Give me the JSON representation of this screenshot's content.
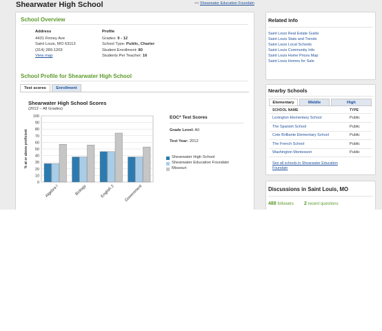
{
  "header": {
    "title": "Shearwater High School",
    "back_link_prefix": "<<",
    "back_link_label": "Shearwater Education Foundatn"
  },
  "overview": {
    "section_title": "School Overview",
    "address_label": "Address",
    "address_line1": "4431 Finney Ave",
    "address_line2": "Saint Louis, MO 63113",
    "phone": "(314) 289-1203",
    "map_link": "View map",
    "profile_label": "Profile",
    "grades_label": "Grades:",
    "grades_value": "9 - 12",
    "type_label": "School Type:",
    "type_value": "Public, Charter",
    "enrollment_label": "Student Enrollment:",
    "enrollment_value": "80",
    "ratio_label": "Students Per Teacher:",
    "ratio_value": "16"
  },
  "profile": {
    "section_title": "School Profile for Shearwater High School",
    "tabs": [
      {
        "label": "Test scores",
        "active": true
      },
      {
        "label": "Enrollment",
        "active": false
      }
    ]
  },
  "chart_data": {
    "type": "bar",
    "title": "Shearwater High School Scores",
    "subtitle": "(2012 –  All Grades)",
    "ylabel": "% at or above proficient",
    "xlabel": "",
    "ylim": [
      0,
      100
    ],
    "yticks": [
      0,
      10,
      20,
      30,
      40,
      50,
      60,
      70,
      80,
      90,
      100
    ],
    "categories": [
      "Algebra I",
      "Biology",
      "English 2",
      "Government"
    ],
    "series": [
      {
        "name": "Shearwater High School",
        "color": "#2b7bb0",
        "values": [
          28,
          38,
          46,
          38
        ]
      },
      {
        "name": "Shearwater Education Foundatn",
        "color": "#a9cde9",
        "values": [
          28,
          38,
          46,
          38
        ]
      },
      {
        "name": "Missouri",
        "color": "#c6c6c6",
        "values": [
          57,
          56,
          74,
          53
        ]
      }
    ],
    "grid": true
  },
  "eoc": {
    "title": "EOC* Test Scores",
    "grade_label": "Grade Level:",
    "grade_value": "All",
    "year_label": "Test Year:",
    "year_value": "2012"
  },
  "related": {
    "title": "Related Info",
    "links": [
      "Saint Louis Real Estate Guide",
      "Saint Louis Stats and Trends",
      "Saint Louis Local Schools",
      "Saint Louis Community Info",
      "Saint Louis Home Prices Map",
      "Saint Louis Homes for Sale"
    ]
  },
  "nearby": {
    "title": "Nearby Schools",
    "tabs": [
      {
        "label": "Elementary",
        "active": true
      },
      {
        "label": "Middle",
        "active": false
      },
      {
        "label": "High",
        "active": false
      }
    ],
    "col_name": "SCHOOL NAME",
    "col_type": "TYPE",
    "rows": [
      {
        "name": "Lexington Elementary School",
        "type": "Public"
      },
      {
        "name": "The Spanish School",
        "type": "Public"
      },
      {
        "name": "Cote Brilliante Elementary School",
        "type": "Public"
      },
      {
        "name": "The French School",
        "type": "Public"
      },
      {
        "name": "Washington Montessori",
        "type": "Public"
      }
    ],
    "see_all_line1": "See all schools in Shearwater Education",
    "see_all_line2": "Foundatn"
  },
  "discussions": {
    "title": "Discussions in Saint Louis, MO",
    "followers_count": "488",
    "followers_label": "followers",
    "questions_count": "2",
    "questions_label": "recent questions"
  },
  "colors": {
    "accent_green": "#5c9a2a",
    "link_blue": "#1e4f9c",
    "page_bg": "#ececec"
  }
}
